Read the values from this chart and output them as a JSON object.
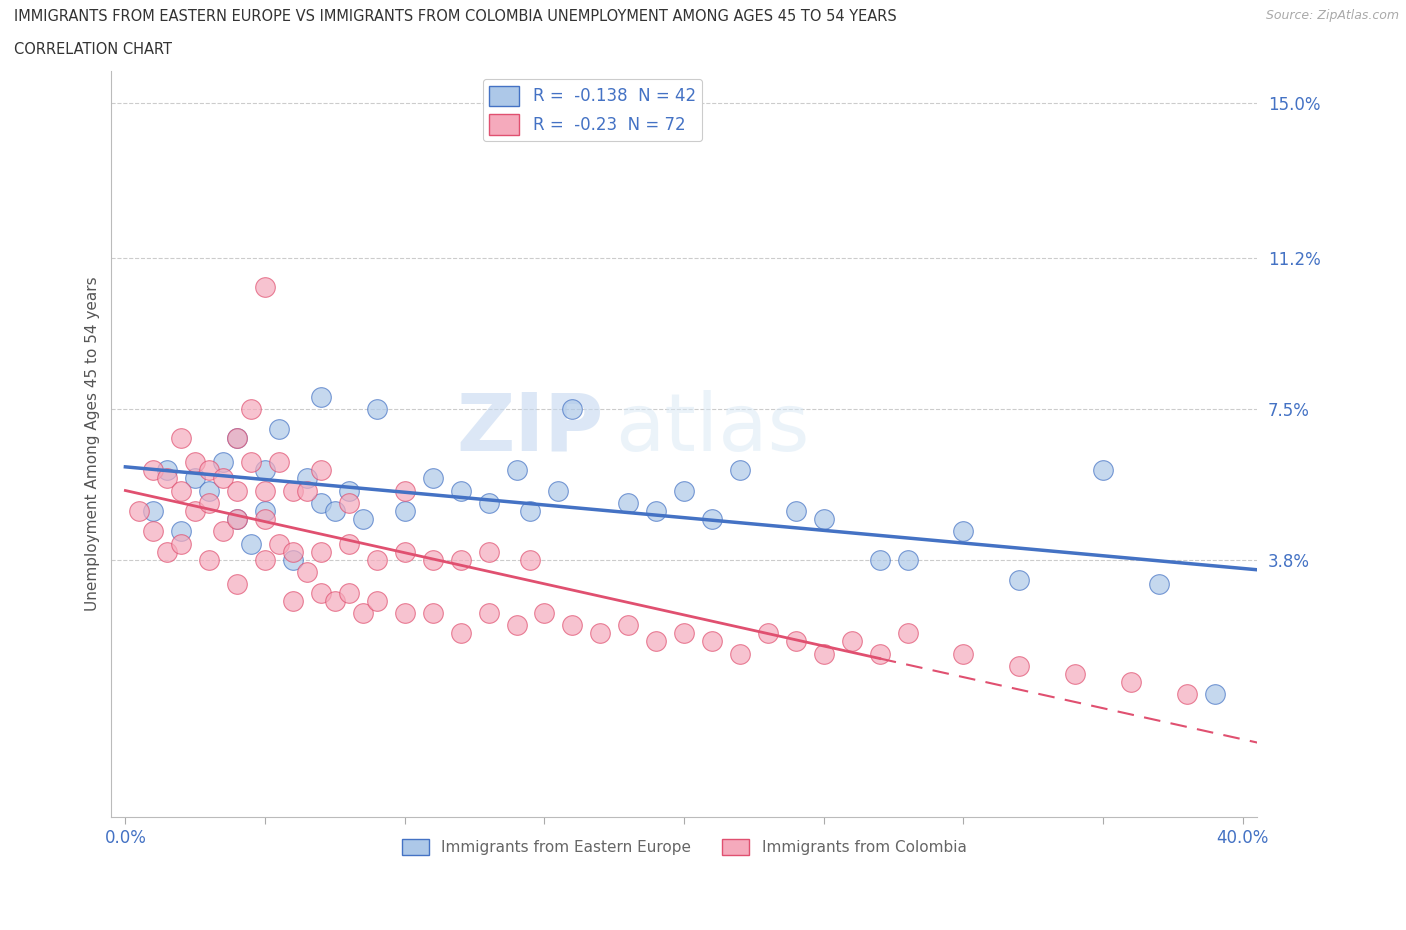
{
  "title_line1": "IMMIGRANTS FROM EASTERN EUROPE VS IMMIGRANTS FROM COLOMBIA UNEMPLOYMENT AMONG AGES 45 TO 54 YEARS",
  "title_line2": "CORRELATION CHART",
  "source_text": "Source: ZipAtlas.com",
  "ylabel": "Unemployment Among Ages 45 to 54 years",
  "xlim": [
    -0.005,
    0.405
  ],
  "ylim": [
    -0.025,
    0.158
  ],
  "yticks": [
    0.038,
    0.075,
    0.112,
    0.15
  ],
  "ytick_labels": [
    "3.8%",
    "7.5%",
    "11.2%",
    "15.0%"
  ],
  "xticks": [
    0.0,
    0.05,
    0.1,
    0.15,
    0.2,
    0.25,
    0.3,
    0.35,
    0.4
  ],
  "xtick_labels": [
    "0.0%",
    "",
    "",
    "",
    "",
    "",
    "",
    "",
    "40.0%"
  ],
  "color_eastern": "#adc8e8",
  "color_colombia": "#f5aabc",
  "line_color_eastern": "#4472c4",
  "line_color_colombia": "#e05070",
  "R_eastern": -0.138,
  "N_eastern": 42,
  "R_colombia": -0.23,
  "N_colombia": 72,
  "eastern_x": [
    0.01,
    0.015,
    0.02,
    0.025,
    0.03,
    0.035,
    0.04,
    0.04,
    0.045,
    0.05,
    0.05,
    0.055,
    0.06,
    0.065,
    0.07,
    0.07,
    0.075,
    0.08,
    0.085,
    0.09,
    0.1,
    0.11,
    0.12,
    0.13,
    0.14,
    0.145,
    0.155,
    0.16,
    0.18,
    0.19,
    0.2,
    0.21,
    0.22,
    0.24,
    0.25,
    0.27,
    0.28,
    0.3,
    0.32,
    0.35,
    0.37,
    0.39
  ],
  "eastern_y": [
    0.05,
    0.06,
    0.045,
    0.058,
    0.055,
    0.062,
    0.048,
    0.068,
    0.042,
    0.05,
    0.06,
    0.07,
    0.038,
    0.058,
    0.052,
    0.078,
    0.05,
    0.055,
    0.048,
    0.075,
    0.05,
    0.058,
    0.055,
    0.052,
    0.06,
    0.05,
    0.055,
    0.075,
    0.052,
    0.05,
    0.055,
    0.048,
    0.06,
    0.05,
    0.048,
    0.038,
    0.038,
    0.045,
    0.033,
    0.06,
    0.032,
    0.005
  ],
  "colombia_x": [
    0.005,
    0.01,
    0.01,
    0.015,
    0.015,
    0.02,
    0.02,
    0.02,
    0.025,
    0.025,
    0.03,
    0.03,
    0.03,
    0.035,
    0.035,
    0.04,
    0.04,
    0.04,
    0.04,
    0.045,
    0.045,
    0.05,
    0.05,
    0.05,
    0.05,
    0.055,
    0.055,
    0.06,
    0.06,
    0.06,
    0.065,
    0.065,
    0.07,
    0.07,
    0.07,
    0.075,
    0.08,
    0.08,
    0.08,
    0.085,
    0.09,
    0.09,
    0.1,
    0.1,
    0.1,
    0.11,
    0.11,
    0.12,
    0.12,
    0.13,
    0.13,
    0.14,
    0.145,
    0.15,
    0.16,
    0.17,
    0.18,
    0.19,
    0.2,
    0.21,
    0.22,
    0.23,
    0.24,
    0.25,
    0.26,
    0.27,
    0.28,
    0.3,
    0.32,
    0.34,
    0.36,
    0.38
  ],
  "colombia_y": [
    0.05,
    0.045,
    0.06,
    0.04,
    0.058,
    0.042,
    0.055,
    0.068,
    0.05,
    0.062,
    0.038,
    0.052,
    0.06,
    0.045,
    0.058,
    0.032,
    0.048,
    0.055,
    0.068,
    0.062,
    0.075,
    0.038,
    0.048,
    0.055,
    0.105,
    0.042,
    0.062,
    0.028,
    0.04,
    0.055,
    0.035,
    0.055,
    0.03,
    0.04,
    0.06,
    0.028,
    0.03,
    0.042,
    0.052,
    0.025,
    0.028,
    0.038,
    0.025,
    0.04,
    0.055,
    0.025,
    0.038,
    0.02,
    0.038,
    0.025,
    0.04,
    0.022,
    0.038,
    0.025,
    0.022,
    0.02,
    0.022,
    0.018,
    0.02,
    0.018,
    0.015,
    0.02,
    0.018,
    0.015,
    0.018,
    0.015,
    0.02,
    0.015,
    0.012,
    0.01,
    0.008,
    0.005
  ],
  "watermark_ZIP": "ZIP",
  "watermark_atlas": "atlas",
  "background_color": "#ffffff",
  "grid_color": "#cccccc"
}
